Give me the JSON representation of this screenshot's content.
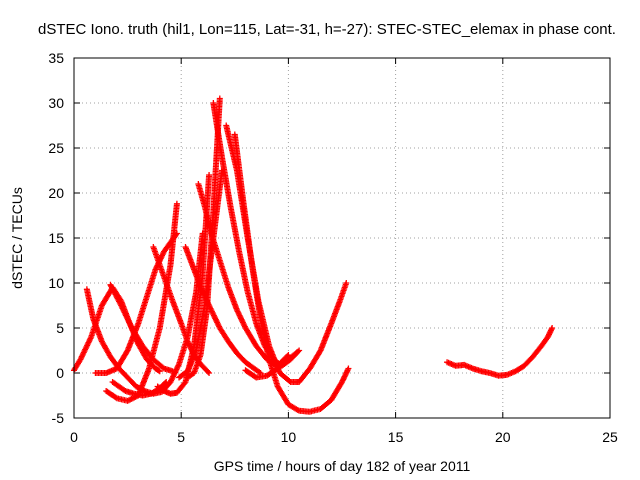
{
  "chart_data": {
    "type": "scatter",
    "title": "dSTEC Iono. truth (hil1, Lon=115, Lat=-31, h=-27): STEC-STEC_elemax in phase cont.",
    "xlabel": "GPS time / hours of day 182 of year 2011",
    "ylabel": "dSTEC  / TECUs",
    "xlim": [
      0,
      25
    ],
    "ylim": [
      -5,
      35
    ],
    "xticks": [
      0,
      5,
      10,
      15,
      20,
      25
    ],
    "yticks": [
      -5,
      0,
      5,
      10,
      15,
      20,
      25,
      30,
      35
    ],
    "grid": true,
    "marker": "plus",
    "color": "#ff0000",
    "series": [
      {
        "x": [
          0.0,
          0.3,
          0.8,
          1.3,
          1.8,
          2.2,
          2.6,
          3.0,
          3.4,
          3.8,
          4.0
        ],
        "y": [
          0.3,
          1.5,
          4.0,
          7.5,
          9.5,
          8.0,
          5.5,
          3.2,
          1.5,
          0.5,
          0.2
        ]
      },
      {
        "x": [
          0.6,
          0.9,
          1.3,
          1.7,
          2.1,
          2.5,
          2.9,
          3.3,
          3.7,
          4.1,
          4.5,
          4.9,
          5.3,
          5.7,
          6.0
        ],
        "y": [
          9.3,
          6.0,
          3.5,
          1.8,
          0.5,
          -0.5,
          -1.5,
          -2.0,
          -2.3,
          -2.1,
          -1.0,
          1.0,
          4.0,
          9.0,
          15.5
        ]
      },
      {
        "x": [
          1.0,
          1.5,
          2.0,
          2.5,
          3.0,
          3.4,
          3.8,
          4.2,
          4.8
        ],
        "y": [
          0.0,
          0.0,
          0.5,
          2.5,
          5.5,
          8.5,
          11.5,
          13.5,
          15.5
        ]
      },
      {
        "x": [
          1.5,
          2.0,
          2.5,
          3.0,
          3.5,
          4.0,
          4.5,
          4.8
        ],
        "y": [
          -2.0,
          -2.8,
          -3.1,
          -2.5,
          0.5,
          5.0,
          12.0,
          18.8
        ]
      },
      {
        "x": [
          1.7,
          2.2,
          2.7,
          3.2,
          3.7,
          4.2,
          4.6
        ],
        "y": [
          9.8,
          7.5,
          5.0,
          3.0,
          1.5,
          0.5,
          0.2
        ]
      },
      {
        "x": [
          1.8,
          2.1,
          2.4,
          2.8,
          3.2,
          3.6,
          4.0,
          4.3
        ],
        "y": [
          -1.0,
          -1.5,
          -2.0,
          -2.3,
          -2.5,
          -2.3,
          -1.7,
          -1.0
        ]
      },
      {
        "x": [
          3.7,
          4.0,
          4.3,
          4.6,
          5.0,
          5.3,
          5.6,
          5.9,
          6.1,
          6.3
        ],
        "y": [
          14.0,
          12.0,
          10.0,
          8.0,
          5.5,
          3.5,
          2.0,
          1.0,
          0.5,
          0.0
        ]
      },
      {
        "x": [
          3.9,
          4.2,
          4.5,
          4.8,
          5.2,
          5.6,
          6.0,
          6.3
        ],
        "y": [
          -1.5,
          -2.0,
          -2.3,
          -2.2,
          -1.0,
          3.0,
          11.0,
          22.0
        ]
      },
      {
        "x": [
          4.9,
          5.3,
          5.7,
          6.1,
          6.5,
          6.9
        ],
        "y": [
          -0.5,
          0.2,
          2.5,
          7.5,
          15.0,
          22.5
        ]
      },
      {
        "x": [
          5.3,
          5.6,
          5.9,
          6.2,
          6.5,
          6.8
        ],
        "y": [
          -0.5,
          0.0,
          2.0,
          7.0,
          18.0,
          30.5
        ]
      },
      {
        "x": [
          5.2,
          5.6,
          6.0,
          6.4,
          6.8,
          7.2,
          7.6,
          8.0,
          8.4,
          8.7
        ],
        "y": [
          14.0,
          11.5,
          9.0,
          7.0,
          5.0,
          3.5,
          2.2,
          1.2,
          0.5,
          0.0
        ]
      },
      {
        "x": [
          5.8,
          6.1,
          6.4,
          6.8,
          7.2,
          7.6,
          8.0,
          8.5,
          9.0,
          9.5,
          10.0
        ],
        "y": [
          21.0,
          18.5,
          15.5,
          12.5,
          9.5,
          7.0,
          5.0,
          3.0,
          1.5,
          0.8,
          2.0
        ]
      },
      {
        "x": [
          6.5,
          6.9,
          7.3,
          7.7,
          8.1,
          8.5,
          8.9,
          9.3,
          9.7,
          10.1,
          10.5
        ],
        "y": [
          30.0,
          24.0,
          18.5,
          13.5,
          9.0,
          5.5,
          3.0,
          1.5,
          0.8,
          1.5,
          2.5
        ]
      },
      {
        "x": [
          7.1,
          7.6,
          8.1,
          8.6,
          9.1,
          9.6,
          10.1,
          10.5,
          11.0,
          11.5,
          12.0,
          12.4,
          12.7
        ],
        "y": [
          27.5,
          22.5,
          15.0,
          8.0,
          3.0,
          0.0,
          -1.0,
          -1.0,
          0.5,
          2.5,
          5.5,
          8.0,
          10.0
        ]
      },
      {
        "x": [
          7.5,
          7.9,
          8.3,
          8.7,
          9.1,
          9.5,
          10.0,
          10.5,
          11.0,
          11.5,
          12.0,
          12.5,
          12.8
        ],
        "y": [
          26.5,
          19.0,
          12.0,
          6.0,
          1.5,
          -1.5,
          -3.5,
          -4.2,
          -4.3,
          -4.0,
          -3.0,
          -1.0,
          0.5
        ]
      },
      {
        "x": [
          8.0,
          8.5,
          9.0,
          9.5,
          10.0,
          10.4
        ],
        "y": [
          0.3,
          -0.5,
          -0.3,
          0.5,
          1.5,
          2.3
        ]
      },
      {
        "x": [
          17.4,
          17.8,
          18.2,
          18.6,
          19.0,
          19.4,
          19.8,
          20.2,
          20.6,
          21.0,
          21.4,
          21.8,
          22.1,
          22.3
        ],
        "y": [
          1.2,
          0.8,
          0.9,
          0.5,
          0.2,
          0.0,
          -0.3,
          -0.2,
          0.2,
          0.8,
          1.8,
          3.0,
          4.0,
          5.0
        ]
      }
    ]
  }
}
